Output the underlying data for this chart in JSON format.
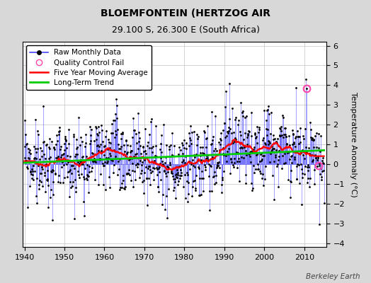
{
  "title": "BLOEMFONTEIN (HERTZOG AIR",
  "subtitle": "29.100 S, 26.300 E (South Africa)",
  "ylabel": "Temperature Anomaly (°C)",
  "credit": "Berkeley Earth",
  "ylim": [
    -4.2,
    6.2
  ],
  "yticks": [
    -4,
    -3,
    -2,
    -1,
    0,
    1,
    2,
    3,
    4,
    5,
    6
  ],
  "xlim": [
    1939.5,
    2015.5
  ],
  "xticks": [
    1940,
    1950,
    1960,
    1970,
    1980,
    1990,
    2000,
    2010
  ],
  "start_year": 1940,
  "end_year": 2014,
  "fig_bg_color": "#d8d8d8",
  "plot_bg_color": "#ffffff",
  "raw_color": "#4444ff",
  "moving_avg_color": "#ff0000",
  "trend_color": "#00cc00",
  "qc_fail_color": "#ff44aa",
  "seed": 99
}
